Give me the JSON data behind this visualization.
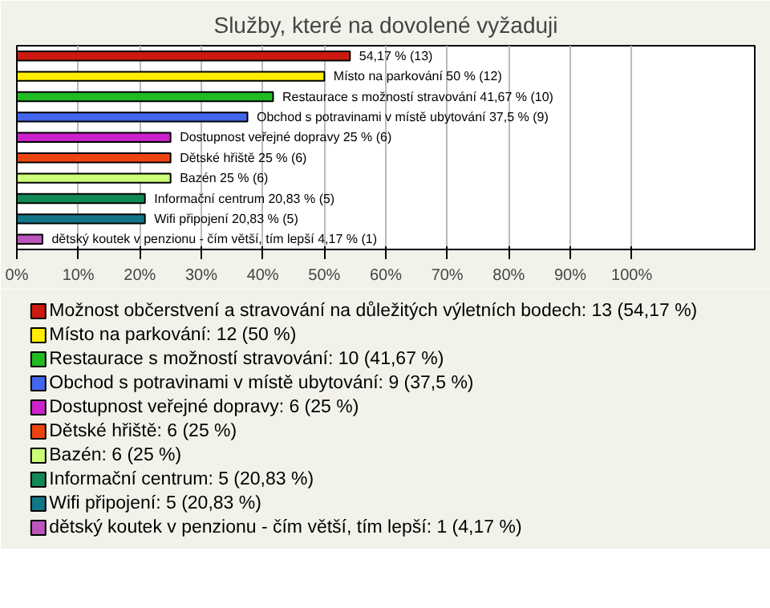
{
  "chart_data": {
    "type": "bar",
    "orientation": "horizontal",
    "title": "Služby, které na dovolené vyžaduji",
    "categories": [
      null,
      null,
      null,
      null,
      null,
      null,
      null,
      null,
      null,
      null
    ],
    "xlim": [
      0,
      120
    ],
    "xticks": [
      {
        "value": 0,
        "label": "0%"
      },
      {
        "value": 10,
        "label": "10%"
      },
      {
        "value": 20,
        "label": "20%"
      },
      {
        "value": 30,
        "label": "30%"
      },
      {
        "value": 40,
        "label": "40%"
      },
      {
        "value": 50,
        "label": "50%"
      },
      {
        "value": 60,
        "label": "60%"
      },
      {
        "value": 70,
        "label": "70%"
      },
      {
        "value": 80,
        "label": "80%"
      },
      {
        "value": 90,
        "label": "90%"
      },
      {
        "value": 100,
        "label": "100%"
      }
    ],
    "grid": "x",
    "legend": "bottom",
    "series": [
      {
        "name": "Možnost občerstvení a stravování na důležitých výletních bodech: 13 (54,17 %)",
        "color": "#cc1a10",
        "values": [
          54.17,
          null,
          null,
          null,
          null,
          null,
          null,
          null,
          null,
          null
        ],
        "value_labels": [
          "54,17 % (13)",
          null,
          null,
          null,
          null,
          null,
          null,
          null,
          null,
          null
        ]
      },
      {
        "name": "Místo na parkování: 12 (50 %)",
        "color": "#ffee00",
        "values": [
          null,
          50,
          null,
          null,
          null,
          null,
          null,
          null,
          null,
          null
        ],
        "value_labels": [
          null,
          "Místo na parkování 50 % (12)",
          null,
          null,
          null,
          null,
          null,
          null,
          null,
          null
        ]
      },
      {
        "name": "Restaurace s možností stravování: 10 (41,67 %)",
        "color": "#22bb22",
        "values": [
          null,
          null,
          41.67,
          null,
          null,
          null,
          null,
          null,
          null,
          null
        ],
        "value_labels": [
          null,
          null,
          "Restaurace s možností stravování 41,67 % (10)",
          null,
          null,
          null,
          null,
          null,
          null,
          null
        ]
      },
      {
        "name": "Obchod s potravinami v místě ubytování: 9 (37,5 %)",
        "color": "#4466ee",
        "values": [
          null,
          null,
          null,
          37.5,
          null,
          null,
          null,
          null,
          null,
          null
        ],
        "value_labels": [
          null,
          null,
          null,
          "Obchod s potravinami v místě ubytování 37,5 % (9)",
          null,
          null,
          null,
          null,
          null,
          null
        ]
      },
      {
        "name": "Dostupnost veřejné dopravy: 6 (25 %)",
        "color": "#cc22cc",
        "values": [
          null,
          null,
          null,
          null,
          25,
          null,
          null,
          null,
          null,
          null
        ],
        "value_labels": [
          null,
          null,
          null,
          null,
          "Dostupnost veřejné dopravy 25 % (6)",
          null,
          null,
          null,
          null,
          null
        ]
      },
      {
        "name": "Dětské hřiště: 6 (25 %)",
        "color": "#ee4411",
        "values": [
          null,
          null,
          null,
          null,
          null,
          25,
          null,
          null,
          null,
          null
        ],
        "value_labels": [
          null,
          null,
          null,
          null,
          null,
          "Dětské hřiště 25 % (6)",
          null,
          null,
          null,
          null
        ]
      },
      {
        "name": "Bazén: 6 (25 %)",
        "color": "#ccff77",
        "values": [
          null,
          null,
          null,
          null,
          null,
          null,
          25,
          null,
          null,
          null
        ],
        "value_labels": [
          null,
          null,
          null,
          null,
          null,
          null,
          "Bazén 25 % (6)",
          null,
          null,
          null
        ]
      },
      {
        "name": "Informační centrum: 5 (20,83 %)",
        "color": "#118855",
        "values": [
          null,
          null,
          null,
          null,
          null,
          null,
          null,
          20.83,
          null,
          null
        ],
        "value_labels": [
          null,
          null,
          null,
          null,
          null,
          null,
          null,
          "Informační centrum 20,83 % (5)",
          null,
          null
        ]
      },
      {
        "name": "Wifi připojení: 5 (20,83 %)",
        "color": "#117788",
        "values": [
          null,
          null,
          null,
          null,
          null,
          null,
          null,
          null,
          20.83,
          null
        ],
        "value_labels": [
          null,
          null,
          null,
          null,
          null,
          null,
          null,
          null,
          "Wifi připojení 20,83 % (5)",
          null
        ]
      },
      {
        "name": "dětský koutek v penzionu - čím větší, tím lepší: 1 (4,17 %)",
        "color": "#bb55bb",
        "values": [
          null,
          null,
          null,
          null,
          null,
          null,
          null,
          null,
          null,
          4.17
        ],
        "value_labels": [
          null,
          null,
          null,
          null,
          null,
          null,
          null,
          null,
          null,
          "dětský koutek v penzionu - čím větší, tím lepší 4,17 % (1)"
        ]
      }
    ]
  }
}
